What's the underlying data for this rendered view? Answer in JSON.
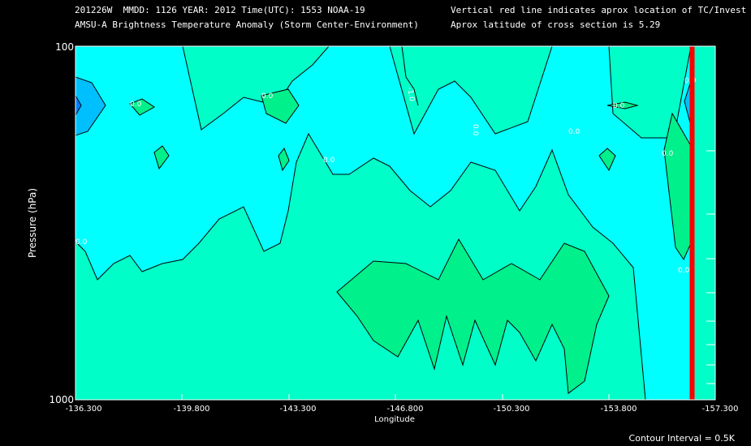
{
  "header": {
    "line1_left": "201226W  MMDD: 1126 YEAR: 2012 Time(UTC): 1553 NOAA-19",
    "line2_left": "AMSU-A Brightness Temperature Anomaly (Storm Center-Environment)",
    "line1_right": "Vertical red line indicates aprox location of TC/Invest",
    "line2_right": "Aprox latitude of cross section is 5.29"
  },
  "footer": {
    "contour_interval": "Contour Interval = 0.5K"
  },
  "colors": {
    "background": "#000000",
    "fill_base": "#00ffc8",
    "fill_cyan": "#00ffff",
    "fill_green": "#00f08c",
    "fill_blue_light": "#00bfff",
    "fill_blue_dark": "#0080ff",
    "storm_line": "#ff0000",
    "contour": "#000000"
  },
  "chart_data": {
    "type": "contour",
    "xlabel": "Longitude",
    "ylabel": "Pressure (hPa)",
    "xlim": [
      -136.3,
      -157.3
    ],
    "ylim": [
      1000,
      100
    ],
    "y_scale": "log",
    "x_ticks": [
      -136.3,
      -139.8,
      -143.3,
      -146.8,
      -150.3,
      -153.8,
      -157.3
    ],
    "x_tick_labels": [
      "-136.300",
      "-139.800",
      "-143.300",
      "-146.800",
      "-150.300",
      "-153.800",
      "-157.300"
    ],
    "y_tick_labels": [
      "100",
      "1000"
    ],
    "right_minor_ticks_hPa": [
      200,
      300,
      400,
      500,
      600,
      700,
      800,
      900
    ],
    "storm_center_longitude": -156.5,
    "contour_labels": [
      "0.0",
      "0.0",
      "0.0",
      "-1.0",
      "0.0",
      "0.0",
      "0.0",
      "0.0",
      "0.0",
      "0.0",
      "0.0"
    ],
    "grid": false
  }
}
